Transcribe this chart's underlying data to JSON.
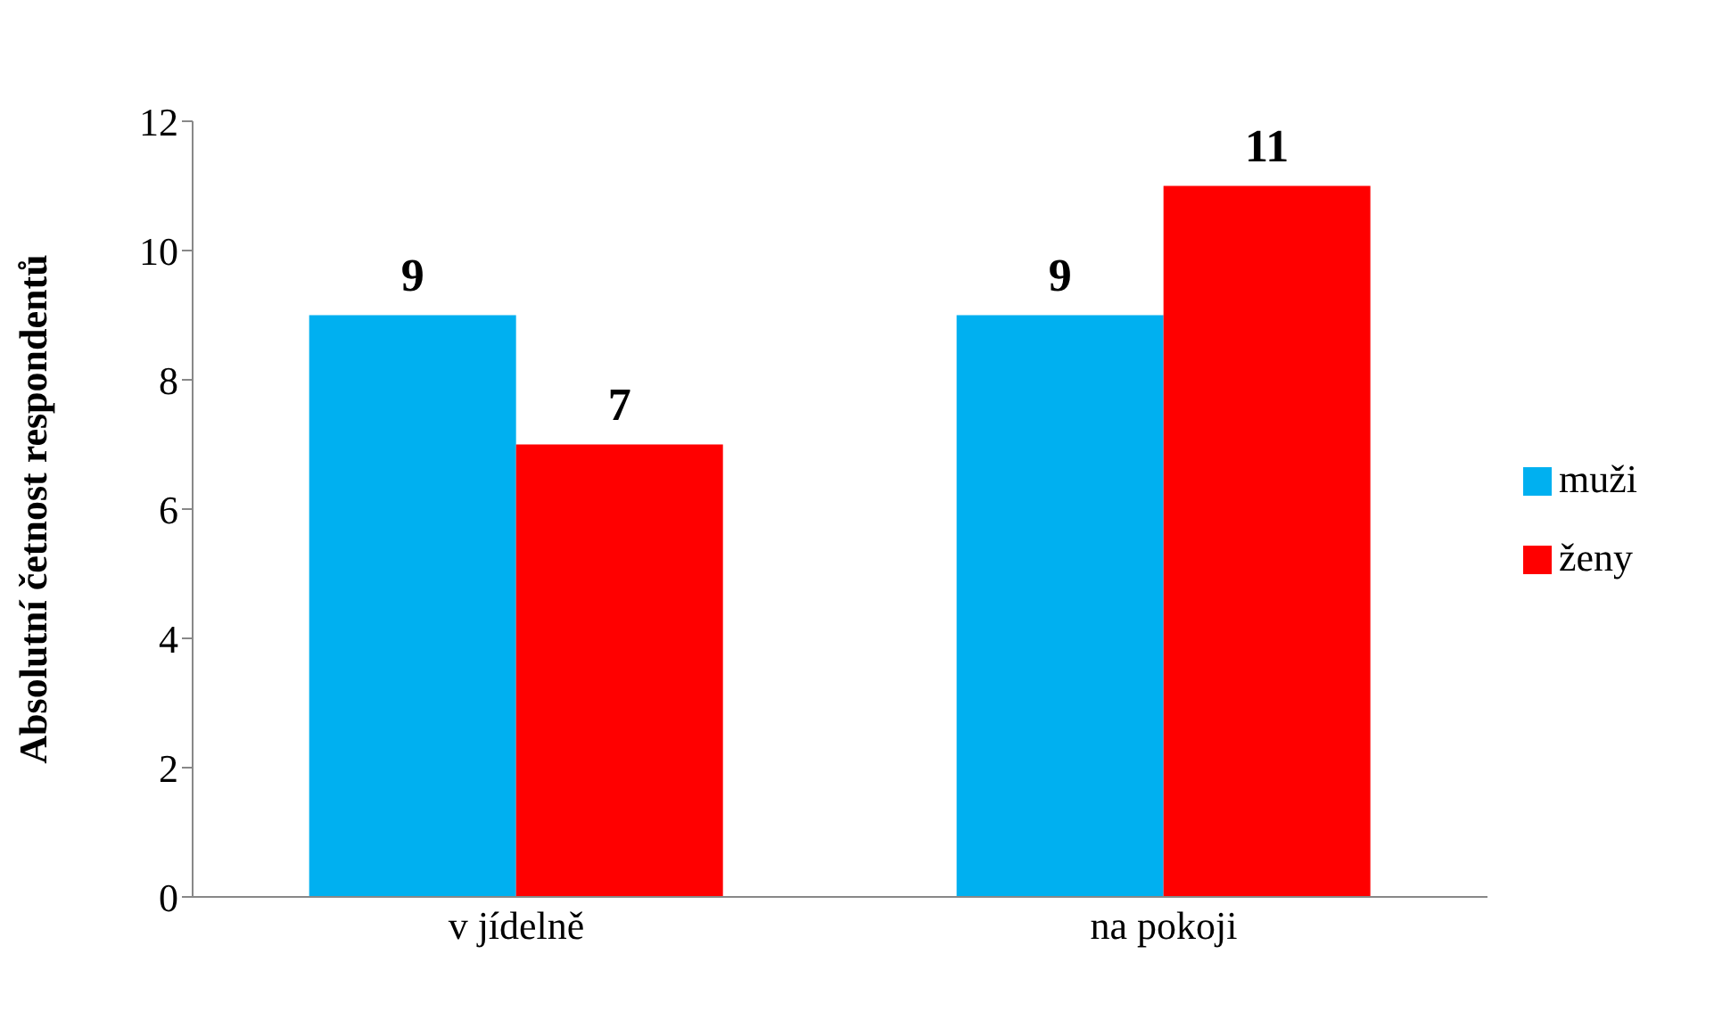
{
  "chart_data": {
    "type": "bar",
    "ylabel": "Absolutní četnost respondentů",
    "categories": [
      "v jídelně",
      "na pokoji"
    ],
    "series": [
      {
        "name": "muži",
        "color": "#00b0f0",
        "values": [
          9,
          9
        ]
      },
      {
        "name": "ženy",
        "color": "#ff0000",
        "values": [
          7,
          11
        ]
      }
    ],
    "ylim": [
      0,
      12
    ],
    "yticks": [
      0,
      2,
      4,
      6,
      8,
      10,
      12
    ],
    "legend": "right",
    "data_labels": true
  }
}
